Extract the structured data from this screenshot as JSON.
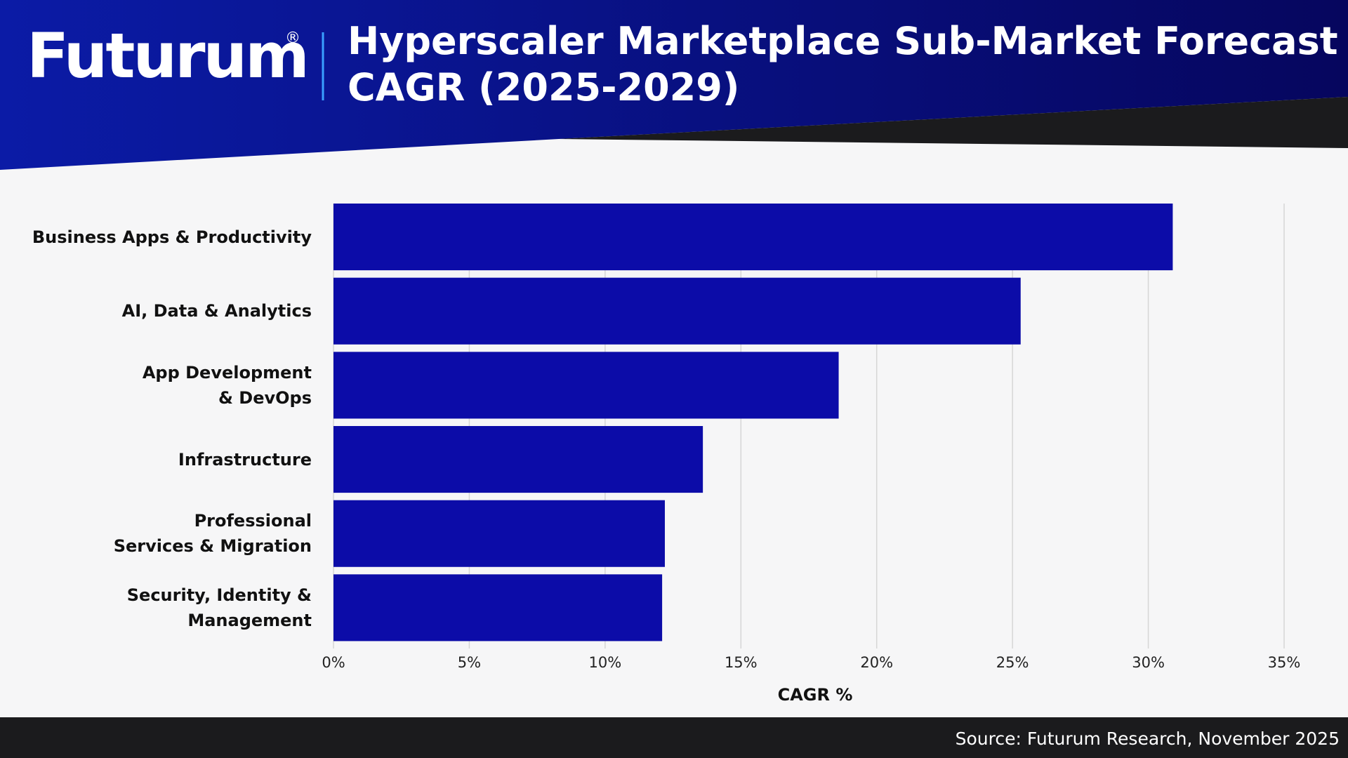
{
  "header": {
    "logo": "Futurum",
    "logo_mark": "®"
  },
  "chart_data": {
    "type": "bar",
    "orientation": "horizontal",
    "title": "Hyperscaler Marketplace Sub-Market Forecast\nCAGR (2025-2029)",
    "categories": [
      "Business Apps & Productivity",
      "AI, Data & Analytics",
      "App Development\n& DevOps",
      "Infrastructure",
      "Professional\nServices & Migration",
      "Security, Identity & Management"
    ],
    "values": [
      30.9,
      25.3,
      18.6,
      13.6,
      12.2,
      12.1
    ],
    "color": "#0c0ca8",
    "xlabel": "CAGR %",
    "xlim": [
      0,
      35
    ],
    "xticks": [
      {
        "value": 0,
        "label": "0%"
      },
      {
        "value": 5,
        "label": "5%"
      },
      {
        "value": 10,
        "label": "10%"
      },
      {
        "value": 15,
        "label": "15%"
      },
      {
        "value": 20,
        "label": "20%"
      },
      {
        "value": 25,
        "label": "25%"
      },
      {
        "value": 30,
        "label": "30%"
      },
      {
        "value": 35,
        "label": "35%"
      }
    ],
    "grid": true
  },
  "footer": {
    "source": "Source: Futurum Research, November 2025"
  }
}
